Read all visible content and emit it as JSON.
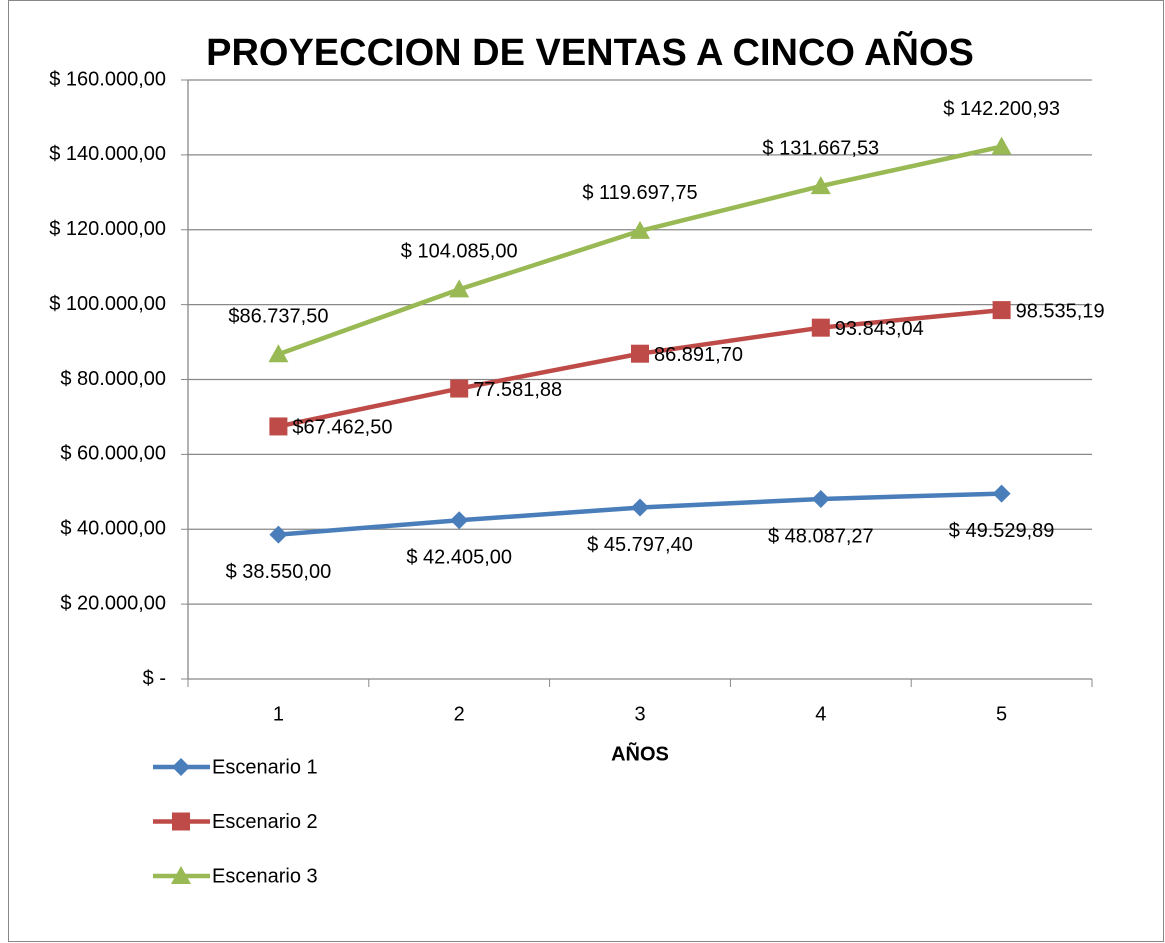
{
  "chart_data": {
    "type": "line",
    "title": "PROYECCION DE VENTAS A CINCO AÑOS",
    "x_label": "AÑOS",
    "categories": [
      "1",
      "2",
      "3",
      "4",
      "5"
    ],
    "series": [
      {
        "name": "Escenario 1",
        "color": "#4a7ebb",
        "marker": "diamond",
        "values": [
          38550,
          42405,
          45797.4,
          48087.27,
          49529.89
        ],
        "value_labels": [
          "$ 38.550,00",
          "$ 42.405,00",
          "$ 45.797,40",
          "$ 48.087,27",
          "$ 49.529,89"
        ]
      },
      {
        "name": "Escenario 2",
        "color": "#be4b48",
        "marker": "square",
        "values": [
          67462.5,
          77581.88,
          86891.7,
          93843.04,
          98535.19
        ],
        "value_labels": [
          "$67.462,50",
          "77.581,88",
          "86.891,70",
          "93.843,04",
          "98.535,19"
        ]
      },
      {
        "name": "Escenario 3",
        "color": "#98b954",
        "marker": "triangle",
        "values": [
          86737.5,
          104085,
          119697.75,
          131667.53,
          142200.93
        ],
        "value_labels": [
          "$86.737,50",
          "$ 104.085,00",
          "$ 119.697,75",
          "$ 131.667,53",
          "$ 142.200,93"
        ]
      }
    ],
    "ylim": [
      0,
      160000
    ],
    "yticks": [
      {
        "value": 0,
        "label": "$ -"
      },
      {
        "value": 20000,
        "label": "$ 20.000,00"
      },
      {
        "value": 40000,
        "label": "$ 40.000,00"
      },
      {
        "value": 60000,
        "label": "$ 60.000,00"
      },
      {
        "value": 80000,
        "label": "$ 80.000,00"
      },
      {
        "value": 100000,
        "label": "$ 100.000,00"
      },
      {
        "value": 120000,
        "label": "$ 120.000,00"
      },
      {
        "value": 140000,
        "label": "$ 140.000,00"
      },
      {
        "value": 160000,
        "label": "$ 160.000,00"
      }
    ],
    "grid": true,
    "legend": "bottom-left"
  }
}
